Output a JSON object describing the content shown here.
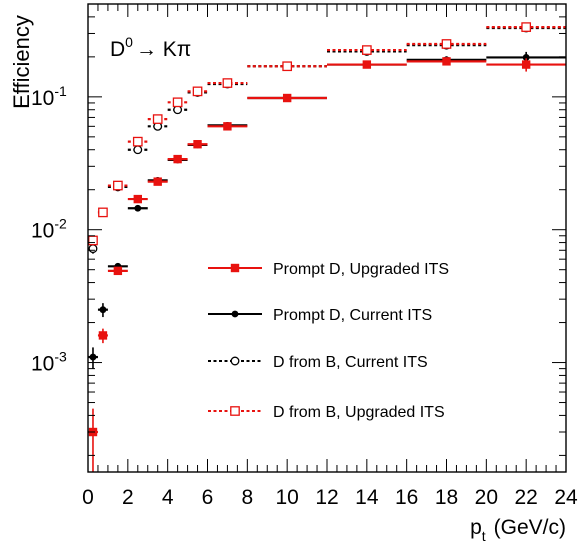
{
  "chart_data": {
    "type": "scatter",
    "annotation": {
      "base": "D",
      "sup": "0",
      "rest": "→ Kπ"
    },
    "ylabel": "Efficiency",
    "xlabel": {
      "main": "p",
      "sub": "t",
      "unit": "(GeV/c)"
    },
    "xlim": [
      0,
      24
    ],
    "ylim": [
      0.00015,
      0.5
    ],
    "yscale": "log",
    "x_ticks": [
      "0",
      "2",
      "4",
      "6",
      "8",
      "10",
      "12",
      "14",
      "16",
      "18",
      "20",
      "22",
      "24"
    ],
    "y_ticks": [
      {
        "base": "10",
        "exp": "-3",
        "value": 0.001
      },
      {
        "base": "10",
        "exp": "-2",
        "value": 0.01
      },
      {
        "base": "10",
        "exp": "-1",
        "value": 0.1
      }
    ],
    "grid": false,
    "legend_position": "bottom-right",
    "series": [
      {
        "name": "Prompt D, Upgraded ITS",
        "color": "#e8120f",
        "marker": "filled-square",
        "line": "solid",
        "points": [
          {
            "x": 0.25,
            "w": 0.25,
            "y": 0.0003,
            "elo": 0.00015,
            "ehi": 0.00015
          },
          {
            "x": 0.75,
            "w": 0.25,
            "y": 0.0016,
            "elo": 0.0002,
            "ehi": 0.0002
          },
          {
            "x": 1.5,
            "w": 0.5,
            "y": 0.0049,
            "elo": 0.0003,
            "ehi": 0.0003
          },
          {
            "x": 2.5,
            "w": 0.5,
            "y": 0.017,
            "elo": 0.0008,
            "ehi": 0.0008
          },
          {
            "x": 3.5,
            "w": 0.5,
            "y": 0.023,
            "elo": 0.0009,
            "ehi": 0.0009
          },
          {
            "x": 4.5,
            "w": 0.5,
            "y": 0.034,
            "elo": 0.0012,
            "ehi": 0.0012
          },
          {
            "x": 5.5,
            "w": 0.5,
            "y": 0.044,
            "elo": 0.0015,
            "ehi": 0.0015
          },
          {
            "x": 7.0,
            "w": 1.0,
            "y": 0.06,
            "elo": 0.002,
            "ehi": 0.002
          },
          {
            "x": 10.0,
            "w": 2.0,
            "y": 0.098,
            "elo": 0.003,
            "ehi": 0.003
          },
          {
            "x": 14.0,
            "w": 2.0,
            "y": 0.175,
            "elo": 0.006,
            "ehi": 0.006
          },
          {
            "x": 18.0,
            "w": 2.0,
            "y": 0.185,
            "elo": 0.012,
            "ehi": 0.012
          },
          {
            "x": 22.0,
            "w": 2.0,
            "y": 0.175,
            "elo": 0.02,
            "ehi": 0.02
          }
        ]
      },
      {
        "name": "Prompt D, Current ITS",
        "color": "#000000",
        "marker": "filled-circle",
        "line": "solid",
        "points": [
          {
            "x": 0.25,
            "w": 0.25,
            "y": 0.0011,
            "elo": 0.0002,
            "ehi": 0.0002
          },
          {
            "x": 0.75,
            "w": 0.25,
            "y": 0.0025,
            "elo": 0.0003,
            "ehi": 0.0003
          },
          {
            "x": 1.5,
            "w": 0.5,
            "y": 0.0053,
            "elo": 0.0003,
            "ehi": 0.0003
          },
          {
            "x": 2.5,
            "w": 0.5,
            "y": 0.0145,
            "elo": 0.0007,
            "ehi": 0.0007
          },
          {
            "x": 3.5,
            "w": 0.5,
            "y": 0.0235,
            "elo": 0.0009,
            "ehi": 0.0009
          },
          {
            "x": 4.5,
            "w": 0.5,
            "y": 0.0335,
            "elo": 0.0012,
            "ehi": 0.0012
          },
          {
            "x": 5.5,
            "w": 0.5,
            "y": 0.0435,
            "elo": 0.0015,
            "ehi": 0.0015
          },
          {
            "x": 7.0,
            "w": 1.0,
            "y": 0.061,
            "elo": 0.002,
            "ehi": 0.002
          },
          {
            "x": 10.0,
            "w": 2.0,
            "y": 0.098,
            "elo": 0.003,
            "ehi": 0.003
          },
          {
            "x": 14.0,
            "w": 2.0,
            "y": 0.175,
            "elo": 0.006,
            "ehi": 0.006
          },
          {
            "x": 18.0,
            "w": 2.0,
            "y": 0.19,
            "elo": 0.012,
            "ehi": 0.012
          },
          {
            "x": 22.0,
            "w": 2.0,
            "y": 0.198,
            "elo": 0.02,
            "ehi": 0.02
          }
        ]
      },
      {
        "name": "D from B, Current ITS",
        "color": "#000000",
        "marker": "open-circle",
        "line": "dotted",
        "points": [
          {
            "x": 0.25,
            "w": 0.25,
            "y": 0.0072,
            "elo": 0.0006,
            "ehi": 0.0006
          },
          {
            "x": 0.75,
            "w": 0.25,
            "y": 0.0135,
            "elo": 0.0006,
            "ehi": 0.0006
          },
          {
            "x": 1.5,
            "w": 0.5,
            "y": 0.021,
            "elo": 0.0008,
            "ehi": 0.0008
          },
          {
            "x": 2.5,
            "w": 0.5,
            "y": 0.04,
            "elo": 0.0015,
            "ehi": 0.0015
          },
          {
            "x": 3.5,
            "w": 0.5,
            "y": 0.06,
            "elo": 0.002,
            "ehi": 0.002
          },
          {
            "x": 4.5,
            "w": 0.5,
            "y": 0.08,
            "elo": 0.003,
            "ehi": 0.003
          },
          {
            "x": 5.5,
            "w": 0.5,
            "y": 0.108,
            "elo": 0.004,
            "ehi": 0.004
          },
          {
            "x": 7.0,
            "w": 1.0,
            "y": 0.125,
            "elo": 0.005,
            "ehi": 0.005
          },
          {
            "x": 10.0,
            "w": 2.0,
            "y": 0.17,
            "elo": 0.006,
            "ehi": 0.006
          },
          {
            "x": 14.0,
            "w": 2.0,
            "y": 0.22,
            "elo": 0.008,
            "ehi": 0.008
          },
          {
            "x": 18.0,
            "w": 2.0,
            "y": 0.245,
            "elo": 0.012,
            "ehi": 0.012
          },
          {
            "x": 22.0,
            "w": 2.0,
            "y": 0.33,
            "elo": 0.02,
            "ehi": 0.02
          }
        ]
      },
      {
        "name": "D from B, Upgraded ITS",
        "color": "#e8120f",
        "marker": "open-square",
        "line": "dotted",
        "points": [
          {
            "x": 0.25,
            "w": 0.25,
            "y": 0.0083,
            "elo": 0.0006,
            "ehi": 0.0006
          },
          {
            "x": 0.75,
            "w": 0.25,
            "y": 0.0135,
            "elo": 0.0006,
            "ehi": 0.0006
          },
          {
            "x": 1.5,
            "w": 0.5,
            "y": 0.0215,
            "elo": 0.0008,
            "ehi": 0.0008
          },
          {
            "x": 2.5,
            "w": 0.5,
            "y": 0.046,
            "elo": 0.0015,
            "ehi": 0.0015
          },
          {
            "x": 3.5,
            "w": 0.5,
            "y": 0.068,
            "elo": 0.002,
            "ehi": 0.002
          },
          {
            "x": 4.5,
            "w": 0.5,
            "y": 0.091,
            "elo": 0.003,
            "ehi": 0.003
          },
          {
            "x": 5.5,
            "w": 0.5,
            "y": 0.11,
            "elo": 0.004,
            "ehi": 0.004
          },
          {
            "x": 7.0,
            "w": 1.0,
            "y": 0.127,
            "elo": 0.005,
            "ehi": 0.005
          },
          {
            "x": 10.0,
            "w": 2.0,
            "y": 0.17,
            "elo": 0.006,
            "ehi": 0.006
          },
          {
            "x": 14.0,
            "w": 2.0,
            "y": 0.225,
            "elo": 0.008,
            "ehi": 0.008
          },
          {
            "x": 18.0,
            "w": 2.0,
            "y": 0.25,
            "elo": 0.012,
            "ehi": 0.012
          },
          {
            "x": 22.0,
            "w": 2.0,
            "y": 0.335,
            "elo": 0.02,
            "ehi": 0.02
          }
        ]
      }
    ]
  }
}
